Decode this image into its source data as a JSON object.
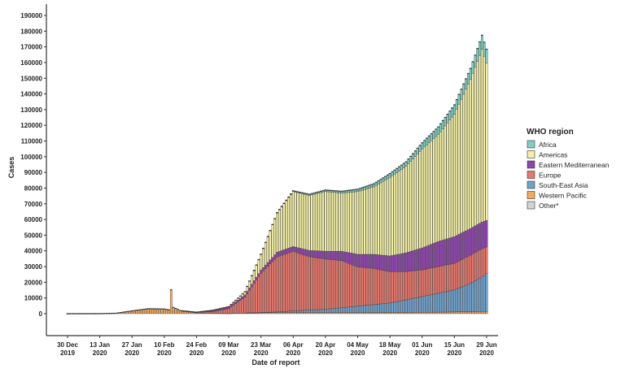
{
  "chart_data": {
    "type": "bar",
    "stacked": true,
    "title": "",
    "xlabel": "Date of report",
    "ylabel": "Cases",
    "ylim": [
      0,
      190000
    ],
    "y_ticks": [
      "0",
      "10000",
      "20000",
      "30000",
      "40000",
      "50000",
      "60000",
      "70000",
      "80000",
      "90000",
      "100000",
      "110000",
      "120000",
      "130000",
      "140000",
      "150000",
      "160000",
      "170000",
      "180000",
      "190000"
    ],
    "x_ticks": [
      {
        "day": 0,
        "line1": "30 Dec",
        "line2": "2019"
      },
      {
        "day": 14,
        "line1": "13 Jan",
        "line2": "2020"
      },
      {
        "day": 28,
        "line1": "27 Jan",
        "line2": "2020"
      },
      {
        "day": 42,
        "line1": "10 Feb",
        "line2": "2020"
      },
      {
        "day": 56,
        "line1": "24 Feb",
        "line2": "2020"
      },
      {
        "day": 70,
        "line1": "09 Mar",
        "line2": "2020"
      },
      {
        "day": 84,
        "line1": "23 Mar",
        "line2": "2020"
      },
      {
        "day": 98,
        "line1": "06 Apr",
        "line2": "2020"
      },
      {
        "day": 112,
        "line1": "20 Apr",
        "line2": "2020"
      },
      {
        "day": 126,
        "line1": "04 May",
        "line2": "2020"
      },
      {
        "day": 140,
        "line1": "18 May",
        "line2": "2020"
      },
      {
        "day": 154,
        "line1": "01 Jun",
        "line2": "2020"
      },
      {
        "day": 168,
        "line1": "15 Jun",
        "line2": "2020"
      },
      {
        "day": 182,
        "line1": "29 Jun",
        "line2": "2020"
      }
    ],
    "x_unit": "days since 30 Dec 2019",
    "legend": {
      "title": "WHO region",
      "placement": "right"
    },
    "series": [
      {
        "name": "Western Pacific",
        "color": "#f5a85a"
      },
      {
        "name": "South-East Asia",
        "color": "#6fa3cf"
      },
      {
        "name": "Europe",
        "color": "#e8766a"
      },
      {
        "name": "Eastern Mediterranean",
        "color": "#8e44ad"
      },
      {
        "name": "Americas",
        "color": "#f3f0a6"
      },
      {
        "name": "Africa",
        "color": "#7fcfc4"
      },
      {
        "name": "Other*",
        "color": "#d4d4d4"
      }
    ],
    "legend_order": [
      "Africa",
      "Americas",
      "Eastern Mediterranean",
      "Europe",
      "South-East Asia",
      "Western Pacific",
      "Other*"
    ],
    "anchors_columns": [
      "day",
      "Western Pacific",
      "South-East Asia",
      "Europe",
      "Eastern Mediterranean",
      "Americas",
      "Africa",
      "Other*"
    ],
    "anchors": [
      [
        0,
        30,
        0,
        0,
        0,
        0,
        0,
        0
      ],
      [
        14,
        50,
        0,
        0,
        0,
        0,
        0,
        0
      ],
      [
        21,
        300,
        0,
        0,
        0,
        0,
        0,
        0
      ],
      [
        28,
        1800,
        0,
        0,
        0,
        0,
        0,
        0
      ],
      [
        35,
        3200,
        0,
        0,
        0,
        0,
        0,
        0
      ],
      [
        42,
        3000,
        0,
        0,
        0,
        0,
        0,
        0
      ],
      [
        44,
        2500,
        0,
        0,
        0,
        0,
        0,
        0
      ],
      [
        45,
        15200,
        0,
        0,
        0,
        0,
        0,
        0
      ],
      [
        46,
        4000,
        0,
        0,
        0,
        0,
        0,
        0
      ],
      [
        49,
        2000,
        0,
        0,
        0,
        0,
        0,
        0
      ],
      [
        56,
        500,
        0,
        300,
        200,
        0,
        0,
        0
      ],
      [
        63,
        300,
        0,
        1000,
        800,
        100,
        0,
        0
      ],
      [
        70,
        200,
        0,
        3000,
        1000,
        300,
        0,
        0
      ],
      [
        77,
        500,
        0,
        10000,
        1500,
        2000,
        0,
        0
      ],
      [
        84,
        700,
        100,
        25000,
        2000,
        10000,
        100,
        0
      ],
      [
        91,
        800,
        300,
        35000,
        3000,
        25000,
        300,
        0
      ],
      [
        98,
        800,
        1000,
        38000,
        3000,
        35000,
        500,
        0
      ],
      [
        105,
        800,
        1500,
        34000,
        4000,
        35000,
        800,
        0
      ],
      [
        112,
        800,
        2000,
        32000,
        5000,
        38000,
        1000,
        0
      ],
      [
        119,
        800,
        3000,
        30000,
        6000,
        37000,
        1200,
        0
      ],
      [
        126,
        800,
        4000,
        25000,
        8000,
        40000,
        1500,
        0
      ],
      [
        133,
        800,
        5000,
        23000,
        9000,
        43000,
        2000,
        0
      ],
      [
        140,
        800,
        6000,
        20000,
        10000,
        50000,
        2500,
        0
      ],
      [
        147,
        800,
        8000,
        18000,
        12000,
        55000,
        3000,
        0
      ],
      [
        154,
        900,
        10000,
        17000,
        14000,
        63000,
        4000,
        0
      ],
      [
        161,
        1000,
        12000,
        17000,
        16000,
        68000,
        5000,
        0
      ],
      [
        168,
        1100,
        14000,
        17000,
        17000,
        78000,
        6000,
        0
      ],
      [
        175,
        1300,
        18000,
        18000,
        17000,
        95000,
        7000,
        0
      ],
      [
        180,
        1400,
        22000,
        18000,
        17000,
        110000,
        9000,
        0
      ],
      [
        182,
        1500,
        24000,
        17000,
        17000,
        100000,
        9000,
        0
      ]
    ]
  }
}
